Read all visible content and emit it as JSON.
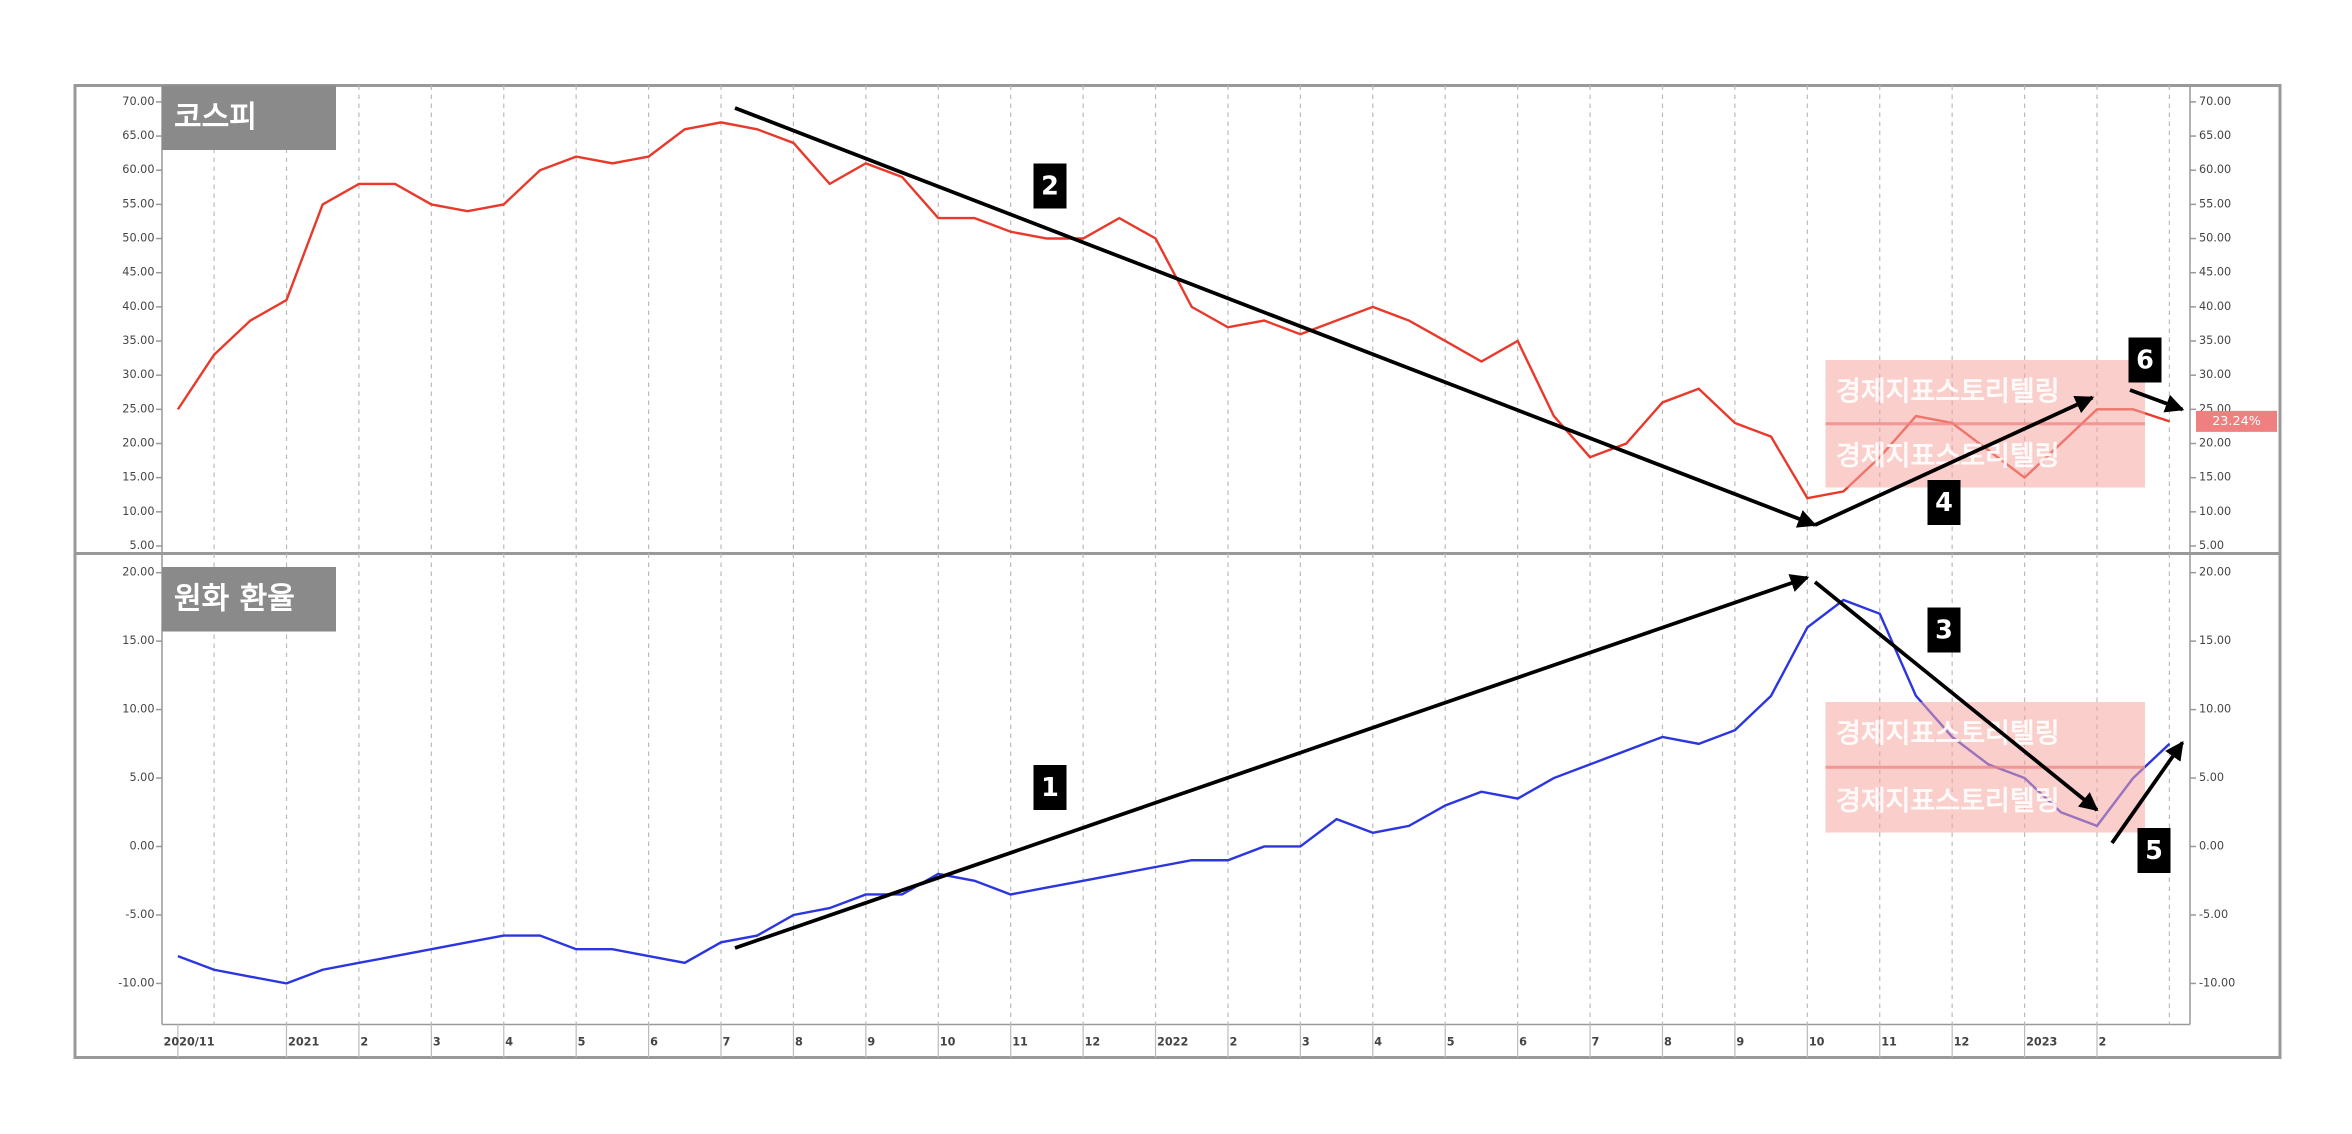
{
  "chart_data": [
    {
      "type": "line",
      "title": "코스피",
      "color": "#e8392b",
      "values": [
        25,
        33,
        38,
        41,
        55,
        58,
        58,
        55,
        54,
        55,
        60,
        62,
        61,
        62,
        66,
        67,
        66,
        64,
        58,
        61,
        59,
        53,
        53,
        51,
        50,
        50,
        53,
        50,
        40,
        37,
        38,
        36,
        38,
        40,
        38,
        35,
        32,
        35,
        24,
        18,
        20,
        26,
        28,
        23,
        21,
        12,
        13,
        18,
        24,
        23,
        19,
        15,
        20,
        25,
        25,
        23.24
      ],
      "last_value_label": "23.24%",
      "ylim": [
        3.9,
        72.4
      ],
      "yticks": [
        {
          "value": 70,
          "label": "70.00"
        },
        {
          "value": 65,
          "label": "65.00"
        },
        {
          "value": 60,
          "label": "60.00"
        },
        {
          "value": 55,
          "label": "55.00"
        },
        {
          "value": 50,
          "label": "50.00"
        },
        {
          "value": 45,
          "label": "45.00"
        },
        {
          "value": 40,
          "label": "40.00"
        },
        {
          "value": 35,
          "label": "35.00"
        },
        {
          "value": 30,
          "label": "30.00"
        },
        {
          "value": 25,
          "label": "25.00"
        },
        {
          "value": 20,
          "label": "20.00"
        },
        {
          "value": 15,
          "label": "15.00"
        },
        {
          "value": 10,
          "label": "10.00"
        },
        {
          "value": 5,
          "label": "5.00"
        }
      ],
      "grid": true,
      "annotations": [
        "2",
        "4",
        "6"
      ]
    },
    {
      "type": "line",
      "title": "원화 환율",
      "color": "#2b35e0",
      "categories": [
        "2020/11",
        null,
        null,
        "2021",
        null,
        "2",
        null,
        "3",
        null,
        "4",
        null,
        "5",
        null,
        "6",
        null,
        "7",
        null,
        "8",
        null,
        "9",
        null,
        "10",
        null,
        "11",
        null,
        "12",
        null,
        "2022",
        null,
        "2",
        null,
        "3",
        null,
        "4",
        null,
        "5",
        null,
        "6",
        null,
        "7",
        null,
        "8",
        null,
        "9",
        null,
        "10",
        null,
        "11",
        null,
        "12",
        null,
        "2023",
        null,
        "2",
        null,
        null
      ],
      "values": [
        -8,
        -9,
        -9.5,
        -10,
        -9,
        -8.5,
        -8,
        -7.5,
        -7,
        -6.5,
        -6.5,
        -7.5,
        -7.5,
        -8,
        -8.5,
        -7,
        -6.5,
        -5,
        -4.5,
        -3.5,
        -3.5,
        -2,
        -2.5,
        -3.5,
        -3,
        -2.5,
        -2,
        -1.5,
        -1,
        -1,
        0,
        0,
        2,
        1,
        1.5,
        3,
        4,
        3.5,
        5,
        6,
        7,
        8,
        7.5,
        8.5,
        11,
        16,
        18,
        17,
        11,
        8,
        6,
        5,
        2.5,
        1.5,
        5,
        7.5
      ],
      "ylim": [
        -13,
        21.4
      ],
      "yticks": [
        {
          "value": 20,
          "label": "20.00"
        },
        {
          "value": 15,
          "label": "15.00"
        },
        {
          "value": 10,
          "label": "10.00"
        },
        {
          "value": 5,
          "label": "5.00"
        },
        {
          "value": 0,
          "label": "0.00"
        },
        {
          "value": -5,
          "label": "-5.00"
        },
        {
          "value": -10,
          "label": "-10.00"
        }
      ],
      "grid": true,
      "annotations": [
        "1",
        "3",
        "5"
      ]
    }
  ],
  "watermark": "경제지표스토리텔링"
}
